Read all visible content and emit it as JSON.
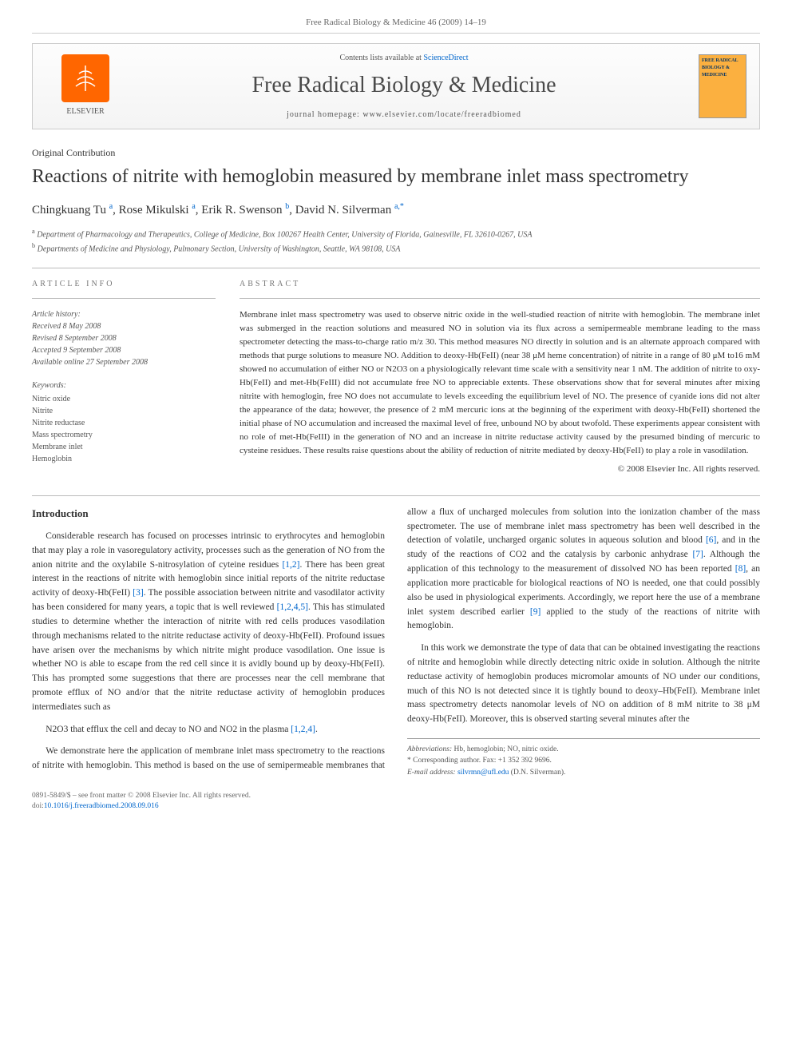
{
  "page": {
    "running_head": "Free Radical Biology & Medicine 46 (2009) 14–19",
    "background_color": "#ffffff",
    "text_color": "#333333",
    "link_color": "#0066cc"
  },
  "banner": {
    "publisher_logo_alt": "Elsevier tree logo",
    "publisher_name": "ELSEVIER",
    "contents_prefix": "Contents lists available at ",
    "contents_link": "ScienceDirect",
    "journal_name": "Free Radical Biology & Medicine",
    "homepage_prefix": "journal homepage: ",
    "homepage_url": "www.elsevier.com/locate/freeradbiomed",
    "cover_text": "FREE RADICAL BIOLOGY & MEDICINE",
    "cover_bg": "#fbb040",
    "logo_bg": "#ff6600"
  },
  "article": {
    "type": "Original Contribution",
    "title": "Reactions of nitrite with hemoglobin measured by membrane inlet mass spectrometry",
    "authors_html": "Chingkuang Tu <sup>a</sup>, Rose Mikulski <sup>a</sup>, Erik R. Swenson <sup>b</sup>, David N. Silverman <sup>a,*</sup>",
    "authors": [
      {
        "name": "Chingkuang Tu",
        "affil": "a"
      },
      {
        "name": "Rose Mikulski",
        "affil": "a"
      },
      {
        "name": "Erik R. Swenson",
        "affil": "b"
      },
      {
        "name": "David N. Silverman",
        "affil": "a,*"
      }
    ],
    "affiliations": {
      "a": "Department of Pharmacology and Therapeutics, College of Medicine, Box 100267 Health Center, University of Florida, Gainesville, FL 32610-0267, USA",
      "b": "Departments of Medicine and Physiology, Pulmonary Section, University of Washington, Seattle, WA 98108, USA"
    }
  },
  "meta": {
    "article_info_heading": "ARTICLE INFO",
    "abstract_heading": "ABSTRACT",
    "history_label": "Article history:",
    "history": {
      "received": "Received 8 May 2008",
      "revised": "Revised 8 September 2008",
      "accepted": "Accepted 9 September 2008",
      "online": "Available online 27 September 2008"
    },
    "keywords_label": "Keywords:",
    "keywords": [
      "Nitric oxide",
      "Nitrite",
      "Nitrite reductase",
      "Mass spectrometry",
      "Membrane inlet",
      "Hemoglobin"
    ]
  },
  "abstract": {
    "text": "Membrane inlet mass spectrometry was used to observe nitric oxide in the well-studied reaction of nitrite with hemoglobin. The membrane inlet was submerged in the reaction solutions and measured NO in solution via its flux across a semipermeable membrane leading to the mass spectrometer detecting the mass-to-charge ratio m/z 30. This method measures NO directly in solution and is an alternate approach compared with methods that purge solutions to measure NO. Addition to deoxy-Hb(FeII) (near 38 μM heme concentration) of nitrite in a range of 80 μM to16 mM showed no accumulation of either NO or N2O3 on a physiologically relevant time scale with a sensitivity near 1 nM. The addition of nitrite to oxy-Hb(FeII) and met-Hb(FeIII) did not accumulate free NO to appreciable extents. These observations show that for several minutes after mixing nitrite with hemoglogin, free NO does not accumulate to levels exceeding the equilibrium level of NO. The presence of cyanide ions did not alter the appearance of the data; however, the presence of 2 mM mercuric ions at the beginning of the experiment with deoxy-Hb(FeII) shortened the initial phase of NO accumulation and increased the maximal level of free, unbound NO by about twofold. These experiments appear consistent with no role of met-Hb(FeIII) in the generation of NO and an increase in nitrite reductase activity caused by the presumed binding of mercuric to cysteine residues. These results raise questions about the ability of reduction of nitrite mediated by deoxy-Hb(FeII) to play a role in vasodilation.",
    "copyright": "© 2008 Elsevier Inc. All rights reserved."
  },
  "body": {
    "section_heading": "Introduction",
    "paragraphs": [
      "Considerable research has focused on processes intrinsic to erythrocytes and hemoglobin that may play a role in vasoregulatory activity, processes such as the generation of NO from the anion nitrite and the oxylabile S-nitrosylation of cyteine residues [1,2]. There has been great interest in the reactions of nitrite with hemoglobin since initial reports of the nitrite reductase activity of deoxy-Hb(FeII) [3]. The possible association between nitrite and vasodilator activity has been considered for many years, a topic that is well reviewed [1,2,4,5]. This has stimulated studies to determine whether the interaction of nitrite with red cells produces vasodilation through mechanisms related to the nitrite reductase activity of deoxy-Hb(FeII). Profound issues have arisen over the mechanisms by which nitrite might produce vasodilation. One issue is whether NO is able to escape from the red cell since it is avidly bound up by deoxy-Hb(FeII). This has prompted some suggestions that there are processes near the cell membrane that promote efflux of NO and/or that the nitrite reductase activity of hemoglobin produces intermediates such as",
      "N2O3 that efflux the cell and decay to NO and NO2 in the plasma [1,2,4].",
      "We demonstrate here the application of membrane inlet mass spectrometry to the reactions of nitrite with hemoglobin. This method is based on the use of semipermeable membranes that allow a flux of uncharged molecules from solution into the ionization chamber of the mass spectrometer. The use of membrane inlet mass spectrometry has been well described in the detection of volatile, uncharged organic solutes in aqueous solution and blood [6], and in the study of the reactions of CO2 and the catalysis by carbonic anhydrase [7]. Although the application of this technology to the measurement of dissolved NO has been reported [8], an application more practicable for biological reactions of NO is needed, one that could possibly also be used in physiological experiments. Accordingly, we report here the use of a membrane inlet system described earlier [9] applied to the study of the reactions of nitrite with hemoglobin.",
      "In this work we demonstrate the type of data that can be obtained investigating the reactions of nitrite and hemoglobin while directly detecting nitric oxide in solution. Although the nitrite reductase activity of hemoglobin produces micromolar amounts of NO under our conditions, much of this NO is not detected since it is tightly bound to deoxy–Hb(FeII). Membrane inlet mass spectrometry detects nanomolar levels of NO on addition of 8 mM nitrite to 38 μM deoxy-Hb(FeII). Moreover, this is observed starting several minutes after the"
    ],
    "ref_citations": [
      "[1,2]",
      "[3]",
      "[1,2,4,5]",
      "[1,2,4]",
      "[6]",
      "[7]",
      "[8]",
      "[9]"
    ]
  },
  "footnotes": {
    "abbrev_label": "Abbreviations:",
    "abbrev_text": "Hb, hemoglobin; NO, nitric oxide.",
    "corresponding_label": "* Corresponding author.",
    "corresponding_fax": "Fax: +1 352 392 9696.",
    "email_label": "E-mail address:",
    "email": "silvrmn@ufl.edu",
    "email_suffix": "(D.N. Silverman)."
  },
  "footer": {
    "issn_line": "0891-5849/$ – see front matter © 2008 Elsevier Inc. All rights reserved.",
    "doi_prefix": "doi:",
    "doi": "10.1016/j.freeradbiomed.2008.09.016"
  },
  "typography": {
    "title_fontsize": 24,
    "journal_fontsize": 28,
    "body_fontsize": 11.5,
    "abstract_fontsize": 11,
    "meta_fontsize": 10,
    "footnote_fontsize": 9.5
  }
}
